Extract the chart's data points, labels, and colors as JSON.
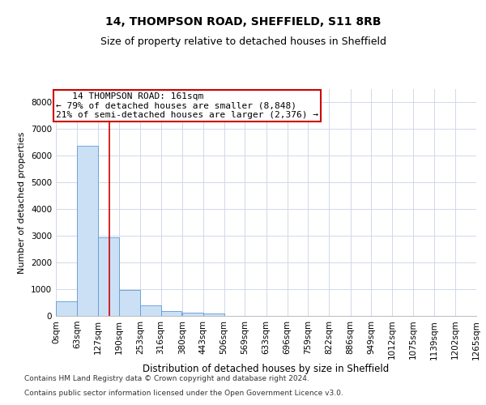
{
  "title1": "14, THOMPSON ROAD, SHEFFIELD, S11 8RB",
  "title2": "Size of property relative to detached houses in Sheffield",
  "xlabel": "Distribution of detached houses by size in Sheffield",
  "ylabel": "Number of detached properties",
  "footer1": "Contains HM Land Registry data © Crown copyright and database right 2024.",
  "footer2": "Contains public sector information licensed under the Open Government Licence v3.0.",
  "annotation_title": "14 THOMPSON ROAD: 161sqm",
  "annotation_line1": "← 79% of detached houses are smaller (8,848)",
  "annotation_line2": "21% of semi-detached houses are larger (2,376) →",
  "property_size_sqm": 161,
  "bin_edges": [
    0,
    63,
    127,
    190,
    253,
    316,
    380,
    443,
    506,
    569,
    633,
    696,
    759,
    822,
    886,
    949,
    1012,
    1075,
    1139,
    1202,
    1265
  ],
  "bar_heights": [
    560,
    6380,
    2930,
    970,
    390,
    175,
    130,
    80,
    0,
    0,
    0,
    0,
    0,
    0,
    0,
    0,
    0,
    0,
    0,
    0
  ],
  "bar_color": "#cce0f5",
  "bar_edge_color": "#5b9bd5",
  "vline_color": "#cc0000",
  "vline_x": 161,
  "ylim": [
    0,
    8500
  ],
  "yticks": [
    0,
    1000,
    2000,
    3000,
    4000,
    5000,
    6000,
    7000,
    8000
  ],
  "grid_color": "#d0d8e8",
  "annotation_box_color": "#cc0000",
  "bg_color": "#ffffff",
  "title1_fontsize": 10,
  "title2_fontsize": 9,
  "xlabel_fontsize": 8.5,
  "ylabel_fontsize": 8,
  "tick_fontsize": 7.5,
  "annotation_fontsize": 8,
  "footer_fontsize": 6.5
}
